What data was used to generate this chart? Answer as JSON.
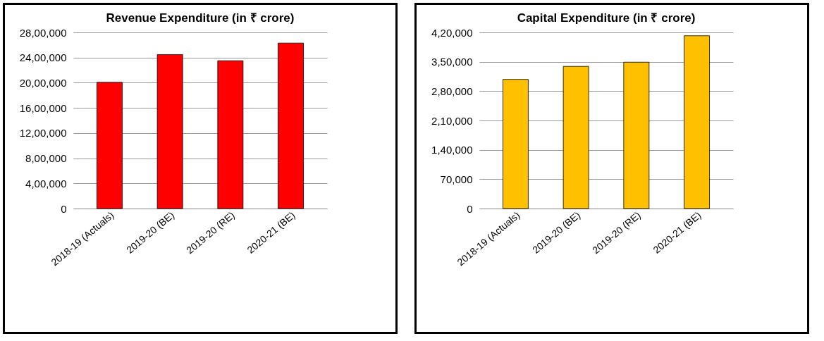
{
  "chart_data": [
    {
      "type": "bar",
      "title": "Revenue  Expenditure (in ₹ crore)",
      "categories": [
        "2018-19 (Actuals)",
        "2019-20 (BE)",
        "2019-20 (RE)",
        "2020-21 (BE)"
      ],
      "values": [
        2007000,
        2448000,
        2350000,
        2630000
      ],
      "color": "#ff0000",
      "ylim": [
        0,
        2800000
      ],
      "yticks": [
        0,
        {
          "value": 400000,
          "label": "4,00,000"
        },
        {
          "value": 800000,
          "label": "8,00,000"
        },
        {
          "value": 1200000,
          "label": "12,00,000"
        },
        {
          "value": 1600000,
          "label": "16,00,000"
        },
        {
          "value": 2000000,
          "label": "20,00,000"
        },
        {
          "value": 2400000,
          "label": "24,00,000"
        },
        {
          "value": 2800000,
          "label": "28,00,000"
        }
      ],
      "grid": "y"
    },
    {
      "type": "bar",
      "title": "Capital Expenditure (in ₹ crore)",
      "categories": [
        "2018-19 (Actuals)",
        "2019-20 (BE)",
        "2019-20 (RE)",
        "2020-21 (BE)"
      ],
      "values": [
        308000,
        339000,
        349000,
        412000
      ],
      "color": "#ffc000",
      "ylim": [
        0,
        420000
      ],
      "yticks": [
        0,
        {
          "value": 70000,
          "label": "70,000"
        },
        {
          "value": 140000,
          "label": "1,40,000"
        },
        {
          "value": 210000,
          "label": "2,10,000"
        },
        {
          "value": 280000,
          "label": "2,80,000"
        },
        {
          "value": 350000,
          "label": "3,50,000"
        },
        {
          "value": 420000,
          "label": "4,20,000"
        }
      ],
      "grid": "y"
    }
  ]
}
